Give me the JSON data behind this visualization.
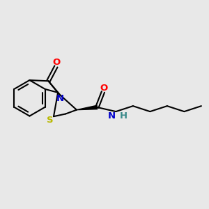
{
  "bg_color": "#e8e8e8",
  "bond_color": "#000000",
  "bond_lw": 1.5,
  "atom_colors": {
    "O": "#ff0000",
    "N": "#0000cc",
    "S": "#b8b800",
    "NH_N": "#0000cc",
    "NH_H": "#3a8a8a"
  },
  "font_size": 9.5
}
